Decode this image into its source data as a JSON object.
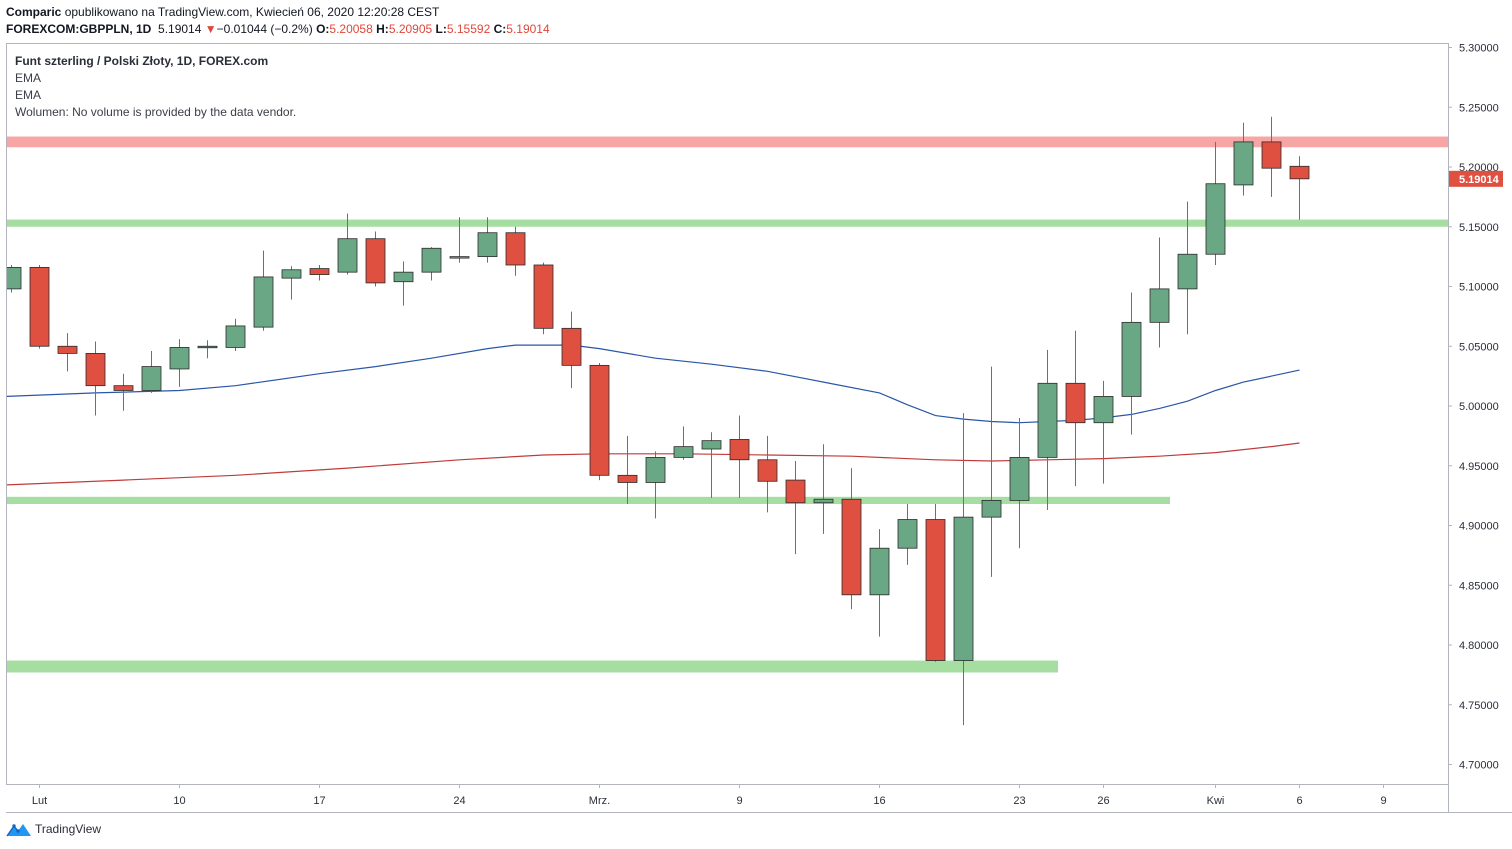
{
  "header": {
    "author": "Comparic",
    "published": "opublikowano na TradingView.com, Kwiecień 06, 2020 12:20:28 CEST",
    "symbol": "FOREXCOM:GBPPLN, 1D",
    "price": "5.19014",
    "change_arrow": "▼",
    "change": "−0.01044 (−0.2%)",
    "o_label": "O:",
    "o_value": "5.20058",
    "h_label": "H:",
    "h_value": "5.20905",
    "l_label": "L:",
    "l_value": "5.15592",
    "c_label": "C:",
    "c_value": "5.19014"
  },
  "legend": {
    "title": "Funt szterling / Polski Złoty, 1D, FOREX.com",
    "ema1": "EMA",
    "ema2": "EMA",
    "volume": "Wolumen: No volume is provided by the data vendor."
  },
  "footer": {
    "brand": "TradingView",
    "logo_icon": "tradingview-logo-icon"
  },
  "chart_data": {
    "type": "candlestick",
    "ylim": [
      4.68,
      5.31
    ],
    "y_ticks": [
      "5.30000",
      "5.25000",
      "5.20000",
      "5.15000",
      "5.10000",
      "5.05000",
      "5.00000",
      "4.95000",
      "4.90000",
      "4.85000",
      "4.80000",
      "4.75000",
      "4.70000"
    ],
    "last_price_label": "5.19014",
    "x_ticks": [
      {
        "label": "Lut",
        "i": 1
      },
      {
        "label": "10",
        "i": 6
      },
      {
        "label": "17",
        "i": 11
      },
      {
        "label": "24",
        "i": 16
      },
      {
        "label": "Mrz.",
        "i": 21
      },
      {
        "label": "9",
        "i": 26
      },
      {
        "label": "16",
        "i": 31
      },
      {
        "label": "23",
        "i": 36
      },
      {
        "label": "26",
        "i": 39
      },
      {
        "label": "Kwi",
        "i": 43
      },
      {
        "label": "6",
        "i": 46
      },
      {
        "label": "9",
        "i": 49
      }
    ],
    "candles": [
      {
        "i": 0,
        "o": 5.098,
        "h": 5.118,
        "l": 5.095,
        "c": 5.116
      },
      {
        "i": 1,
        "o": 5.116,
        "h": 5.118,
        "l": 5.048,
        "c": 5.05
      },
      {
        "i": 2,
        "o": 5.05,
        "h": 5.061,
        "l": 5.029,
        "c": 5.044
      },
      {
        "i": 3,
        "o": 5.044,
        "h": 5.054,
        "l": 4.992,
        "c": 5.017
      },
      {
        "i": 4,
        "o": 5.017,
        "h": 5.027,
        "l": 4.996,
        "c": 5.013
      },
      {
        "i": 5,
        "o": 5.013,
        "h": 5.046,
        "l": 5.011,
        "c": 5.033
      },
      {
        "i": 6,
        "o": 5.031,
        "h": 5.056,
        "l": 5.016,
        "c": 5.049
      },
      {
        "i": 7,
        "o": 5.049,
        "h": 5.055,
        "l": 5.04,
        "c": 5.05
      },
      {
        "i": 8,
        "o": 5.049,
        "h": 5.073,
        "l": 5.046,
        "c": 5.067
      },
      {
        "i": 9,
        "o": 5.066,
        "h": 5.13,
        "l": 5.063,
        "c": 5.108
      },
      {
        "i": 10,
        "o": 5.107,
        "h": 5.117,
        "l": 5.089,
        "c": 5.114
      },
      {
        "i": 11,
        "o": 5.115,
        "h": 5.118,
        "l": 5.105,
        "c": 5.11
      },
      {
        "i": 12,
        "o": 5.112,
        "h": 5.161,
        "l": 5.11,
        "c": 5.14
      },
      {
        "i": 13,
        "o": 5.14,
        "h": 5.146,
        "l": 5.1,
        "c": 5.103
      },
      {
        "i": 14,
        "o": 5.104,
        "h": 5.121,
        "l": 5.084,
        "c": 5.112
      },
      {
        "i": 15,
        "o": 5.112,
        "h": 5.133,
        "l": 5.105,
        "c": 5.132
      },
      {
        "i": 16,
        "o": 5.124,
        "h": 5.158,
        "l": 5.12,
        "c": 5.125
      },
      {
        "i": 17,
        "o": 5.125,
        "h": 5.158,
        "l": 5.12,
        "c": 5.145
      },
      {
        "i": 18,
        "o": 5.145,
        "h": 5.15,
        "l": 5.109,
        "c": 5.118
      },
      {
        "i": 19,
        "o": 5.118,
        "h": 5.12,
        "l": 5.06,
        "c": 5.065
      },
      {
        "i": 20,
        "o": 5.065,
        "h": 5.079,
        "l": 5.015,
        "c": 5.034
      },
      {
        "i": 21,
        "o": 5.034,
        "h": 5.036,
        "l": 4.938,
        "c": 4.942
      },
      {
        "i": 22,
        "o": 4.942,
        "h": 4.975,
        "l": 4.918,
        "c": 4.936
      },
      {
        "i": 23,
        "o": 4.936,
        "h": 4.962,
        "l": 4.906,
        "c": 4.957
      },
      {
        "i": 24,
        "o": 4.957,
        "h": 4.983,
        "l": 4.955,
        "c": 4.966
      },
      {
        "i": 25,
        "o": 4.964,
        "h": 4.978,
        "l": 4.923,
        "c": 4.971
      },
      {
        "i": 26,
        "o": 4.972,
        "h": 4.992,
        "l": 4.923,
        "c": 4.955
      },
      {
        "i": 27,
        "o": 4.955,
        "h": 4.975,
        "l": 4.911,
        "c": 4.937
      },
      {
        "i": 28,
        "o": 4.938,
        "h": 4.954,
        "l": 4.876,
        "c": 4.919
      },
      {
        "i": 29,
        "o": 4.919,
        "h": 4.968,
        "l": 4.893,
        "c": 4.922
      },
      {
        "i": 30,
        "o": 4.922,
        "h": 4.948,
        "l": 4.83,
        "c": 4.842
      },
      {
        "i": 31,
        "o": 4.842,
        "h": 4.897,
        "l": 4.807,
        "c": 4.881
      },
      {
        "i": 32,
        "o": 4.881,
        "h": 4.918,
        "l": 4.867,
        "c": 4.905
      },
      {
        "i": 33,
        "o": 4.905,
        "h": 4.918,
        "l": 4.786,
        "c": 4.787
      },
      {
        "i": 34,
        "o": 4.787,
        "h": 4.994,
        "l": 4.733,
        "c": 4.907
      },
      {
        "i": 35,
        "o": 4.907,
        "h": 5.033,
        "l": 4.857,
        "c": 4.921
      },
      {
        "i": 36,
        "o": 4.921,
        "h": 4.99,
        "l": 4.881,
        "c": 4.957
      },
      {
        "i": 37,
        "o": 4.957,
        "h": 5.047,
        "l": 4.913,
        "c": 5.019
      },
      {
        "i": 38,
        "o": 5.019,
        "h": 5.063,
        "l": 4.933,
        "c": 4.986
      },
      {
        "i": 39,
        "o": 4.986,
        "h": 5.021,
        "l": 4.935,
        "c": 5.008
      },
      {
        "i": 40,
        "o": 5.008,
        "h": 5.095,
        "l": 4.976,
        "c": 5.07
      },
      {
        "i": 41,
        "o": 5.07,
        "h": 5.141,
        "l": 5.049,
        "c": 5.098
      },
      {
        "i": 42,
        "o": 5.098,
        "h": 5.171,
        "l": 5.06,
        "c": 5.127
      },
      {
        "i": 43,
        "o": 5.127,
        "h": 5.221,
        "l": 5.118,
        "c": 5.186
      },
      {
        "i": 44,
        "o": 5.185,
        "h": 5.237,
        "l": 5.176,
        "c": 5.221
      },
      {
        "i": 45,
        "o": 5.221,
        "h": 5.242,
        "l": 5.175,
        "c": 5.199
      },
      {
        "i": 46,
        "o": 5.2006,
        "h": 5.209,
        "l": 5.1559,
        "c": 5.1901
      }
    ],
    "ema_fast": [
      [
        0,
        5.008
      ],
      [
        3,
        5.011
      ],
      [
        6,
        5.013
      ],
      [
        8,
        5.017
      ],
      [
        11,
        5.027
      ],
      [
        13,
        5.033
      ],
      [
        15,
        5.04
      ],
      [
        17,
        5.048
      ],
      [
        18,
        5.051
      ],
      [
        20,
        5.051
      ],
      [
        21,
        5.048
      ],
      [
        23,
        5.04
      ],
      [
        25,
        5.035
      ],
      [
        27,
        5.029
      ],
      [
        29,
        5.02
      ],
      [
        31,
        5.011
      ],
      [
        32,
        5.001
      ],
      [
        33,
        4.992
      ],
      [
        34,
        4.989
      ],
      [
        35,
        4.987
      ],
      [
        36,
        4.986
      ],
      [
        37,
        4.987
      ],
      [
        38,
        4.988
      ],
      [
        39,
        4.99
      ],
      [
        40,
        4.993
      ],
      [
        41,
        4.998
      ],
      [
        42,
        5.004
      ],
      [
        43,
        5.013
      ],
      [
        44,
        5.02
      ],
      [
        45,
        5.025
      ],
      [
        46,
        5.03
      ]
    ],
    "ema_slow": [
      [
        0,
        4.934
      ],
      [
        4,
        4.938
      ],
      [
        8,
        4.942
      ],
      [
        12,
        4.948
      ],
      [
        16,
        4.955
      ],
      [
        19,
        4.959
      ],
      [
        21,
        4.96
      ],
      [
        24,
        4.96
      ],
      [
        27,
        4.959
      ],
      [
        30,
        4.958
      ],
      [
        33,
        4.955
      ],
      [
        35,
        4.954
      ],
      [
        37,
        4.955
      ],
      [
        39,
        4.956
      ],
      [
        41,
        4.958
      ],
      [
        43,
        4.961
      ],
      [
        45,
        4.966
      ],
      [
        46,
        4.969
      ]
    ],
    "zones": [
      {
        "level": 5.221,
        "thickness": 0.009,
        "color": "#f7a5a5",
        "from_i": -1,
        "extends_right": true
      },
      {
        "level": 5.153,
        "thickness": 0.006,
        "color": "#a5dea0",
        "from_i": -1,
        "extends_right": true
      },
      {
        "level": 4.921,
        "thickness": 0.006,
        "color": "#a5dea0",
        "from_i": -1,
        "to_i": 41
      },
      {
        "level": 4.782,
        "thickness": 0.01,
        "color": "#a5dea0",
        "from_i": -1,
        "to_i": 37
      }
    ],
    "colors": {
      "up": "#6aa784",
      "down": "#df5041",
      "ema_fast": "#2a56a6",
      "ema_slow": "#c03b3b",
      "grid": "#e0e3eb",
      "axis_text": "#2a2e39"
    }
  }
}
